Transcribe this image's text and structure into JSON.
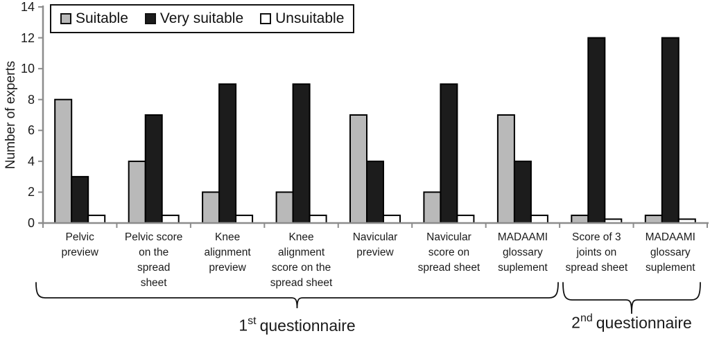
{
  "chart_data": {
    "type": "bar",
    "title": "",
    "ylabel": "Number of experts",
    "xlabel": "",
    "ylim": [
      0,
      14
    ],
    "yticks": [
      0,
      2,
      4,
      6,
      8,
      10,
      12,
      14
    ],
    "grid": false,
    "legend_position": "top-left",
    "categories": [
      "Pelvic preview",
      "Pelvic score on the spread sheet",
      "Knee alignment preview",
      "Knee alignment score on the spread sheet",
      "Navicular preview",
      "Navicular score on spread sheet",
      "MADAAMI glossary suplement",
      "Score of 3 joints on spread sheet",
      "MADAAMI glossary suplement"
    ],
    "category_lines": [
      [
        "Pelvic",
        "preview"
      ],
      [
        "Pelvic score",
        "on the",
        "spread",
        "sheet"
      ],
      [
        "Knee",
        "alignment",
        "preview"
      ],
      [
        "Knee",
        "alignment",
        "score on the",
        "spread sheet"
      ],
      [
        "Navicular",
        "preview"
      ],
      [
        "Navicular",
        "score on",
        "spread sheet"
      ],
      [
        "MADAAMI",
        "glossary",
        "suplement"
      ],
      [
        "Score of 3",
        "joints on",
        "spread sheet"
      ],
      [
        "MADAAMI",
        "glossary",
        "suplement"
      ]
    ],
    "series": [
      {
        "name": "Suitable",
        "color": "#b9b9b9",
        "values": [
          8,
          4,
          2,
          2,
          7,
          2,
          7,
          0.5,
          0.5
        ]
      },
      {
        "name": "Very suitable",
        "color": "#1c1c1c",
        "values": [
          3,
          7,
          9,
          9,
          4,
          9,
          4,
          12,
          12
        ]
      },
      {
        "name": "Unsuitable",
        "color": "#ffffff",
        "values": [
          0.5,
          0.5,
          0.5,
          0.5,
          0.5,
          0.5,
          0.5,
          0.25,
          0.25
        ]
      }
    ],
    "annotations": [
      {
        "label": "1st questionnaire",
        "num": "1",
        "ord": "st",
        "text": "questionnaire",
        "group_span": [
          0,
          6
        ]
      },
      {
        "label": "2nd questionnaire",
        "num": "2",
        "ord": "nd",
        "text": "questionnaire",
        "group_span": [
          7,
          8
        ]
      }
    ],
    "colors": {
      "axis": "#8c8c8c",
      "bar_border": "#000000",
      "bracket": "#111111",
      "text": "#1a1a1a"
    }
  }
}
